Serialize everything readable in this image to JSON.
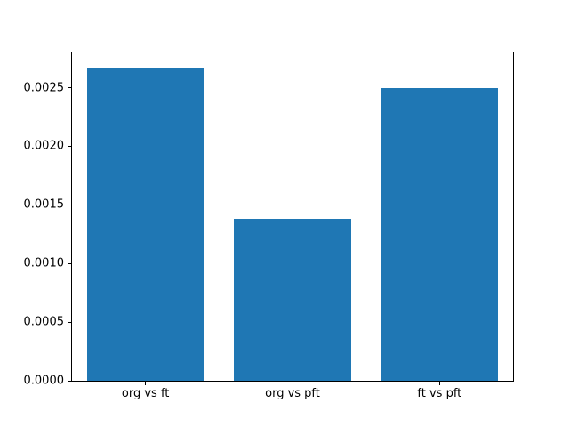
{
  "chart_data": {
    "type": "bar",
    "categories": [
      "org vs ft",
      "org vs pft",
      "ft vs pft"
    ],
    "values": [
      0.00266,
      0.00138,
      0.0025
    ],
    "title": "",
    "xlabel": "",
    "ylabel": "",
    "ylim": [
      0,
      0.0028
    ],
    "yticks": [
      0.0,
      0.0005,
      0.001,
      0.0015,
      0.002,
      0.0025
    ],
    "ytick_labels": [
      "0.0000",
      "0.0005",
      "0.0010",
      "0.0015",
      "0.0020",
      "0.0025"
    ],
    "bar_color": "#1f77b4",
    "bar_width_fraction": 0.8,
    "grid": false,
    "legend": false,
    "background_color": "#ffffff",
    "axis_color": "#000000"
  }
}
